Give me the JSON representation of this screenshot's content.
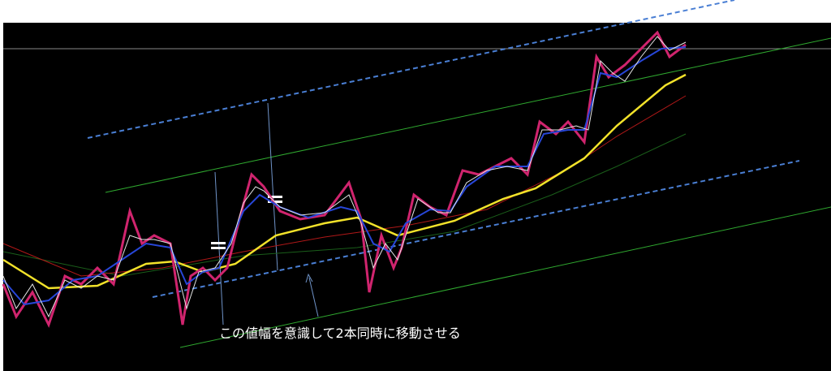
{
  "annotation": "この値幅を意識して2本同時に移動させる"
}
